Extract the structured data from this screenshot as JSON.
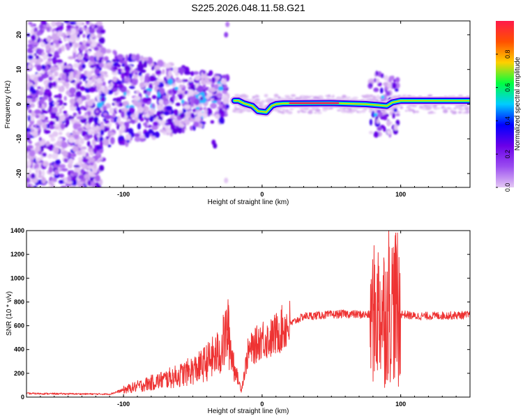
{
  "chart_data": [
    {
      "type": "heatmap",
      "title": "S225.2026.048.11.58.G21",
      "xlabel": "Height of straight line (km)",
      "ylabel": "Frequency (Hz)",
      "xlim": [
        -170,
        150
      ],
      "ylim": [
        -24,
        24
      ],
      "xticks": [
        -100,
        0,
        100
      ],
      "yticks": [
        -20,
        -10,
        0,
        10,
        20
      ],
      "colorbar": {
        "label": "Normalized spectral amplitude",
        "range": [
          0.0,
          1.0
        ],
        "ticks": [
          "0.0",
          "0.2",
          "0.4",
          "0.6",
          "0.8"
        ],
        "colormap": [
          "#e4c8f4",
          "#9b4df0",
          "#6a00e8",
          "#0000ff",
          "#00ccff",
          "#00ff40",
          "#ffd000",
          "#ff5000",
          "#ff1a4a"
        ]
      },
      "ridge_centerline": [
        [
          -20,
          1.0
        ],
        [
          -17,
          1.0
        ],
        [
          -13,
          0.2
        ],
        [
          -7,
          -0.5
        ],
        [
          -3,
          -2.0
        ],
        [
          3,
          -2.3
        ],
        [
          7,
          -0.5
        ],
        [
          10,
          0.0
        ],
        [
          15,
          0.2
        ],
        [
          50,
          0.3
        ],
        [
          75,
          0.0
        ],
        [
          90,
          -0.5
        ],
        [
          94,
          0.5
        ],
        [
          100,
          1.0
        ],
        [
          150,
          1.0
        ]
      ],
      "peak_amplitude_band": {
        "x_from": 20,
        "x_to": 55,
        "freq_hz": 0.3,
        "amplitude": 1.0
      }
    },
    {
      "type": "line",
      "xlabel": "Height of straight line (km)",
      "ylabel": "SNR (10 * v/v)",
      "xlim": [
        -170,
        150
      ],
      "ylim": [
        0,
        1400
      ],
      "xticks": [
        -100,
        0,
        100
      ],
      "yticks": [
        0,
        200,
        400,
        600,
        800,
        1000,
        1200,
        1400
      ],
      "series": [
        {
          "name": "SNR",
          "color": "#ee3333",
          "envelope_points": [
            [
              -170,
              30
            ],
            [
              -110,
              25
            ],
            [
              -100,
              60
            ],
            [
              -80,
              120
            ],
            [
              -60,
              180
            ],
            [
              -45,
              250
            ],
            [
              -30,
              380
            ],
            [
              -25,
              560
            ],
            [
              -20,
              250
            ],
            [
              -15,
              60
            ],
            [
              -10,
              380
            ],
            [
              -5,
              430
            ],
            [
              0,
              500
            ],
            [
              5,
              480
            ],
            [
              15,
              580
            ],
            [
              30,
              680
            ],
            [
              60,
              700
            ],
            [
              80,
              690
            ],
            [
              85,
              750
            ],
            [
              90,
              700
            ],
            [
              95,
              800
            ],
            [
              100,
              700
            ],
            [
              110,
              680
            ],
            [
              150,
              690
            ]
          ],
          "noise_spikes": [
            {
              "x": -25,
              "y": 820
            },
            {
              "x": 83,
              "y": 1000
            },
            {
              "x": 91,
              "y": 1400
            },
            {
              "x": 96,
              "y": 1380
            },
            {
              "x": 88,
              "y": 80
            },
            {
              "x": 98,
              "y": 90
            }
          ]
        }
      ]
    }
  ]
}
